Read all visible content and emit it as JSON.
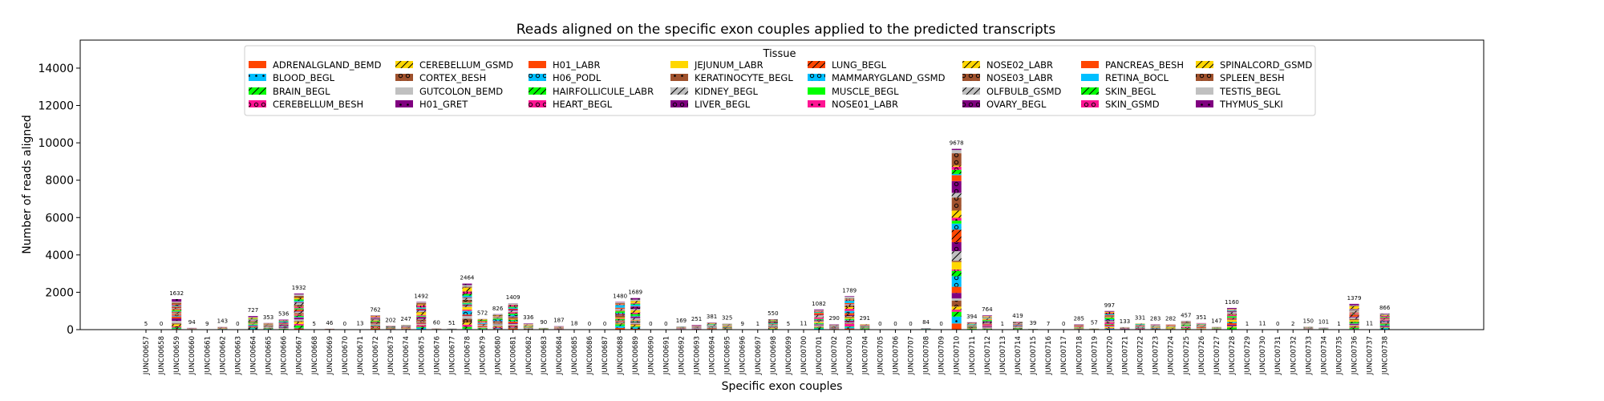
{
  "chart_data": {
    "type": "bar",
    "stacked": true,
    "title": "Reads aligned on the specific exon couples applied to the predicted transcripts",
    "xlabel": "Specific exon couples",
    "ylabel": "Number of reads aligned",
    "ylim": [
      0,
      15500
    ],
    "yticks": [
      0,
      2000,
      4000,
      6000,
      8000,
      10000,
      12000,
      14000
    ],
    "grid": false,
    "legend": {
      "title": "Tissue",
      "placement": "upper-center",
      "columns": 8,
      "entries": [
        {
          "name": "ADRENALGLAND_BEMD",
          "color": "#ff4500",
          "hatch": "none"
        },
        {
          "name": "BLOOD_BEGL",
          "color": "#00bfff",
          "hatch": "star"
        },
        {
          "name": "BRAIN_BEGL",
          "color": "#00ff00",
          "hatch": "slash"
        },
        {
          "name": "CEREBELLUM_BESH",
          "color": "#ff1493",
          "hatch": "circle"
        },
        {
          "name": "CEREBELLUM_GSMD",
          "color": "#ffd700",
          "hatch": "slash"
        },
        {
          "name": "CORTEX_BESH",
          "color": "#a0522d",
          "hatch": "circle"
        },
        {
          "name": "GUTCOLON_BEMD",
          "color": "#c0c0c0",
          "hatch": "none"
        },
        {
          "name": "H01_GRET",
          "color": "#800080",
          "hatch": "star"
        },
        {
          "name": "H01_LABR",
          "color": "#ff4500",
          "hatch": "none"
        },
        {
          "name": "H06_PODL",
          "color": "#00bfff",
          "hatch": "circle"
        },
        {
          "name": "HAIRFOLLICULE_LABR",
          "color": "#00ff00",
          "hatch": "slash"
        },
        {
          "name": "HEART_BEGL",
          "color": "#ff1493",
          "hatch": "circle"
        },
        {
          "name": "JEJUNUM_LABR",
          "color": "#ffd700",
          "hatch": "none"
        },
        {
          "name": "KERATINOCYTE_BEGL",
          "color": "#a0522d",
          "hatch": "star"
        },
        {
          "name": "KIDNEY_BEGL",
          "color": "#c0c0c0",
          "hatch": "slash"
        },
        {
          "name": "LIVER_BEGL",
          "color": "#800080",
          "hatch": "circle"
        },
        {
          "name": "LUNG_BEGL",
          "color": "#ff4500",
          "hatch": "slash"
        },
        {
          "name": "MAMMARYGLAND_GSMD",
          "color": "#00bfff",
          "hatch": "circle"
        },
        {
          "name": "MUSCLE_BEGL",
          "color": "#00ff00",
          "hatch": "none"
        },
        {
          "name": "NOSE01_LABR",
          "color": "#ff1493",
          "hatch": "star"
        },
        {
          "name": "NOSE02_LABR",
          "color": "#ffd700",
          "hatch": "slash"
        },
        {
          "name": "NOSE03_LABR",
          "color": "#a0522d",
          "hatch": "circle"
        },
        {
          "name": "OLFBULB_GSMD",
          "color": "#c0c0c0",
          "hatch": "slash"
        },
        {
          "name": "OVARY_BEGL",
          "color": "#800080",
          "hatch": "circle"
        },
        {
          "name": "PANCREAS_BESH",
          "color": "#ff4500",
          "hatch": "none"
        },
        {
          "name": "RETINA_BOCL",
          "color": "#00bfff",
          "hatch": "none"
        },
        {
          "name": "SKIN_BEGL",
          "color": "#00ff00",
          "hatch": "slash"
        },
        {
          "name": "SKIN_GSMD",
          "color": "#ff1493",
          "hatch": "circle"
        },
        {
          "name": "SPINALCORD_GSMD",
          "color": "#ffd700",
          "hatch": "slash"
        },
        {
          "name": "SPLEEN_BESH",
          "color": "#a0522d",
          "hatch": "circle"
        },
        {
          "name": "TESTIS_BEGL",
          "color": "#c0c0c0",
          "hatch": "none"
        },
        {
          "name": "THYMUS_SLKI",
          "color": "#800080",
          "hatch": "star"
        }
      ]
    },
    "categories": [
      "JUNC00657",
      "JUNC00658",
      "JUNC00659",
      "JUNC00660",
      "JUNC00661",
      "JUNC00662",
      "JUNC00663",
      "JUNC00664",
      "JUNC00665",
      "JUNC00666",
      "JUNC00667",
      "JUNC00668",
      "JUNC00669",
      "JUNC00670",
      "JUNC00671",
      "JUNC00672",
      "JUNC00673",
      "JUNC00674",
      "JUNC00675",
      "JUNC00676",
      "JUNC00677",
      "JUNC00678",
      "JUNC00679",
      "JUNC00680",
      "JUNC00681",
      "JUNC00682",
      "JUNC00683",
      "JUNC00684",
      "JUNC00685",
      "JUNC00686",
      "JUNC00687",
      "JUNC00688",
      "JUNC00689",
      "JUNC00690",
      "JUNC00691",
      "JUNC00692",
      "JUNC00693",
      "JUNC00694",
      "JUNC00695",
      "JUNC00696",
      "JUNC00697",
      "JUNC00698",
      "JUNC00699",
      "JUNC00700",
      "JUNC00701",
      "JUNC00702",
      "JUNC00703",
      "JUNC00704",
      "JUNC00705",
      "JUNC00706",
      "JUNC00707",
      "JUNC00708",
      "JUNC00709",
      "JUNC00710",
      "JUNC00711",
      "JUNC00712",
      "JUNC00713",
      "JUNC00714",
      "JUNC00715",
      "JUNC00716",
      "JUNC00717",
      "JUNC00718",
      "JUNC00719",
      "JUNC00720",
      "JUNC00721",
      "JUNC00722",
      "JUNC00723",
      "JUNC00724",
      "JUNC00725",
      "JUNC00726",
      "JUNC00727",
      "JUNC00728",
      "JUNC00729",
      "JUNC00730",
      "JUNC00731",
      "JUNC00732",
      "JUNC00733",
      "JUNC00734",
      "JUNC00735",
      "JUNC00736",
      "JUNC00737",
      "JUNC00738"
    ],
    "totals": [
      5,
      0,
      1632,
      94,
      9,
      143,
      0,
      727,
      353,
      536,
      1932,
      5,
      46,
      0,
      13,
      762,
      202,
      247,
      1492,
      60,
      51,
      2464,
      572,
      826,
      1409,
      336,
      90,
      187,
      18,
      0,
      0,
      1480,
      1689,
      0,
      0,
      169,
      251,
      381,
      325,
      9,
      1,
      550,
      5,
      11,
      1082,
      290,
      1789,
      291,
      0,
      0,
      0,
      84,
      0,
      9678,
      394,
      764,
      1,
      419,
      39,
      7,
      0,
      285,
      57,
      997,
      133,
      331,
      283,
      282,
      457,
      351,
      147,
      1160,
      1,
      11,
      0,
      2,
      150,
      101,
      1,
      1379,
      11,
      866
    ],
    "total_labels": [
      "5",
      "0",
      "1632",
      "94",
      "9",
      "143",
      "0",
      "727",
      "353",
      "536",
      "1932",
      "5",
      "46",
      "0",
      "13",
      "762",
      "202",
      "247",
      "1492",
      "60",
      "51",
      "2464",
      "572",
      "826",
      "1409",
      "336",
      "90",
      "187",
      "18",
      "0",
      "0",
      "1480",
      "1689",
      "0",
      "0",
      "169",
      "251",
      "381",
      "325",
      "9",
      "1",
      "550",
      "5",
      "11",
      "1082",
      "290",
      "1789",
      "291",
      "0",
      "0",
      "0",
      "84",
      "0",
      "9678",
      "394",
      "764",
      "1",
      "419",
      "39",
      "7",
      "0",
      "285",
      "57",
      "997",
      "133",
      "331",
      "283",
      "282",
      "457",
      "351",
      "147",
      "1160",
      "1",
      "11",
      "0",
      "2",
      "150",
      "101",
      "1",
      "1379",
      "11",
      "866"
    ]
  }
}
